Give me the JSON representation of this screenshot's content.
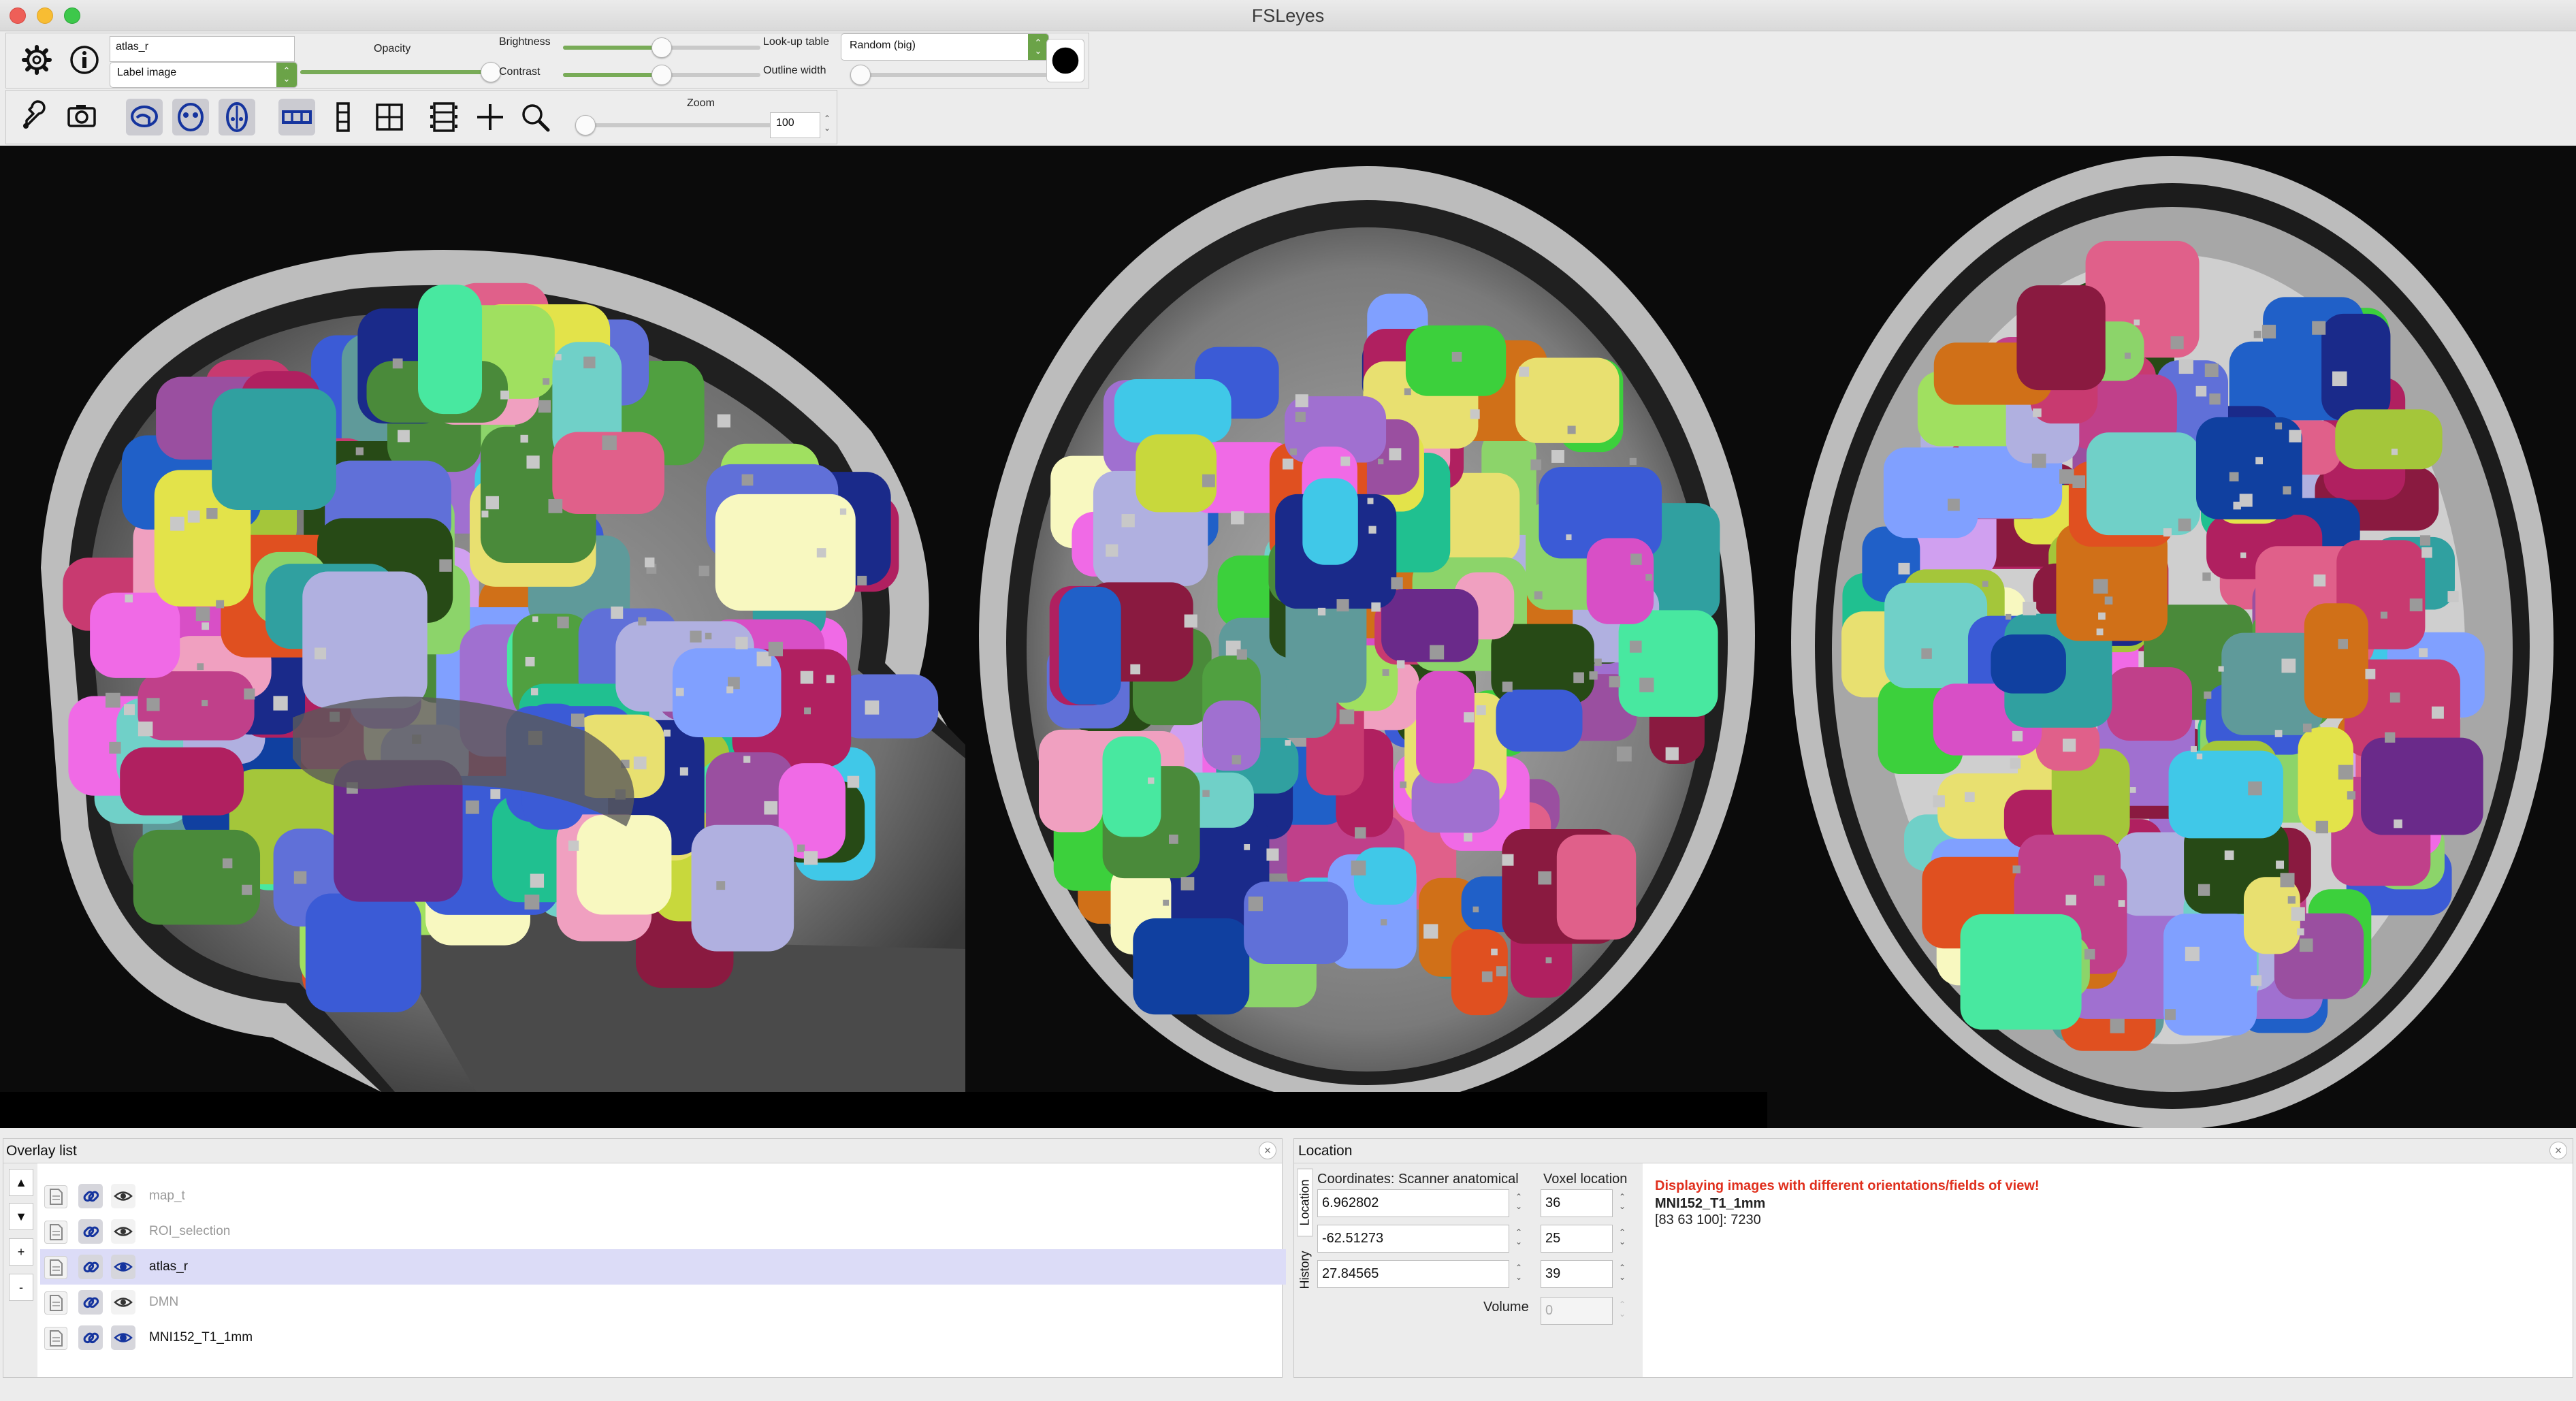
{
  "window": {
    "title": "FSLeyes"
  },
  "overlay_toolbar": {
    "name_field": "atlas_r",
    "overlay_type": "Label image",
    "opacity_label": "Opacity",
    "brightness_label": "Brightness",
    "contrast_label": "Contrast",
    "lut_label": "Look-up table",
    "lut_value": "Random (big)",
    "outline_label": "Outline width",
    "opacity_level": 1.0,
    "brightness_level": 0.5,
    "contrast_level": 0.5,
    "outline_level": 0.0
  },
  "ortho_toolbar": {
    "zoom_label": "Zoom",
    "zoom_value": "100",
    "zoom_level": 0.0
  },
  "overlay_list": {
    "title": "Overlay list",
    "buttons": {
      "up": "▲",
      "down": "▼",
      "add": "+",
      "remove": "-"
    },
    "items": [
      {
        "name": "map_t",
        "selected": false,
        "visible": false
      },
      {
        "name": "ROI_selection",
        "selected": false,
        "visible": false
      },
      {
        "name": "atlas_r",
        "selected": true,
        "visible": true
      },
      {
        "name": "DMN",
        "selected": false,
        "visible": false
      },
      {
        "name": "MNI152_T1_1mm",
        "selected": false,
        "visible": true
      }
    ]
  },
  "location": {
    "title": "Location",
    "tabs": [
      "Location",
      "History"
    ],
    "coords_label": "Coordinates: Scanner anatomical",
    "voxel_label": "Voxel location",
    "x": "6.962802",
    "y": "-62.51273",
    "z": "27.84565",
    "vx": "36",
    "vy": "25",
    "vz": "39",
    "volume_label": "Volume",
    "volume": "0",
    "warning": "Displaying images with different orientations/fields of view!",
    "image_name": "MNI152_T1_1mm",
    "voxel_info": "[83 63 100]: 7230"
  },
  "colors": {
    "accent_green": "#6ba348",
    "warning_red": "#e0301e",
    "selected_row": "#dcdcf7"
  },
  "icons": [
    "gear-icon",
    "info-icon",
    "wrench-icon",
    "camera-icon",
    "sagittal-icon",
    "coronal-icon",
    "axial-icon",
    "horizontal-layout-icon",
    "vertical-layout-icon",
    "grid-layout-icon",
    "movie-icon",
    "cursor-cross-icon",
    "zoom-icon",
    "document-icon",
    "link-icon",
    "eye-icon"
  ]
}
